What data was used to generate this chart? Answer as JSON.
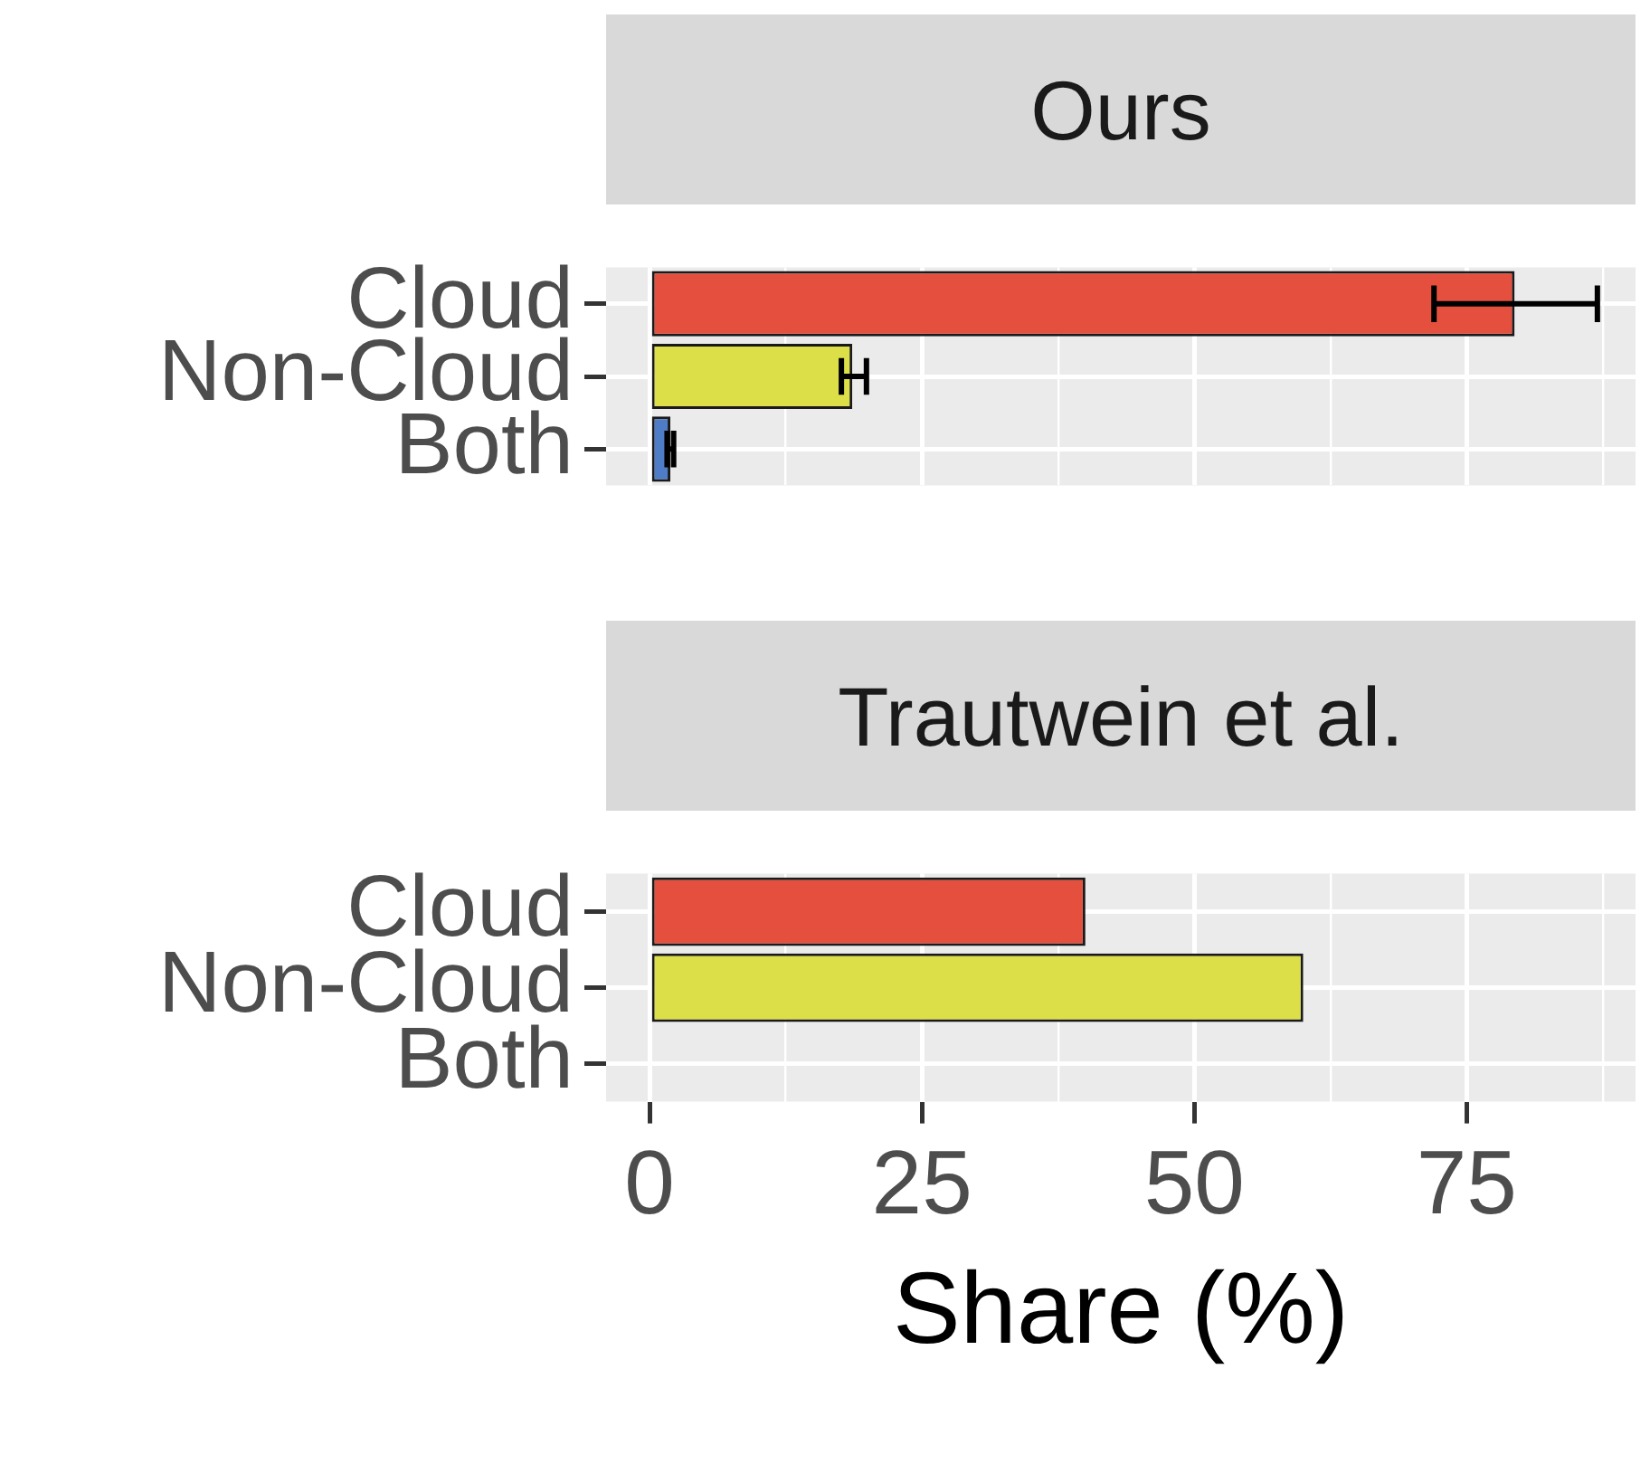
{
  "chart_data": [
    {
      "type": "bar",
      "title": "Ours",
      "orientation": "horizontal",
      "categories": [
        "Cloud",
        "Non-Cloud",
        "Both"
      ],
      "values": [
        79.4,
        18.6,
        1.9
      ],
      "colors": [
        "#e5503e",
        "#dcdf48",
        "#4f7cc6"
      ],
      "errors": [
        [
          72,
          87
        ],
        [
          17.6,
          19.9
        ],
        [
          1.6,
          2.2
        ]
      ],
      "xlim": [
        -4,
        90.5
      ],
      "xticks": [
        0,
        {
          "value": 12.5,
          "label": null
        },
        25,
        {
          "value": 37.5,
          "label": null
        },
        50,
        {
          "value": 62.5,
          "label": null
        },
        75,
        {
          "value": 87.5,
          "label": null
        }
      ],
      "grid": true,
      "tick_labels": "y"
    },
    {
      "type": "bar",
      "title": "Trautwein et al.",
      "orientation": "horizontal",
      "categories": [
        "Cloud",
        "Non-Cloud",
        "Both"
      ],
      "values": [
        40,
        60,
        null
      ],
      "colors": [
        "#e5503e",
        "#dcdf48",
        "#4f7cc6"
      ],
      "xlim": [
        -4,
        90.5
      ],
      "xticks": [
        0,
        {
          "value": 12.5,
          "label": null
        },
        25,
        {
          "value": 37.5,
          "label": null
        },
        50,
        {
          "value": 62.5,
          "label": null
        },
        75,
        {
          "value": 87.5,
          "label": null
        }
      ],
      "grid": true,
      "xlabel": "Share (%)"
    }
  ]
}
